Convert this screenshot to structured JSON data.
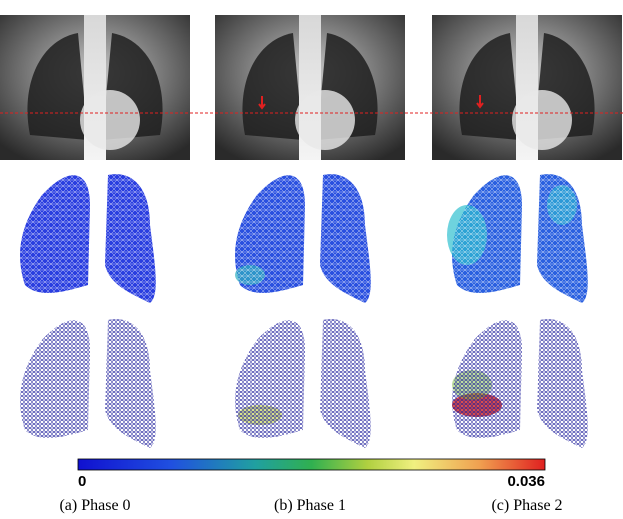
{
  "colorbar": {
    "min": 0,
    "max": 0.036
  },
  "captions": [
    "(a) Phase 0",
    "(b) Phase 1",
    "(c) Phase 2"
  ]
}
